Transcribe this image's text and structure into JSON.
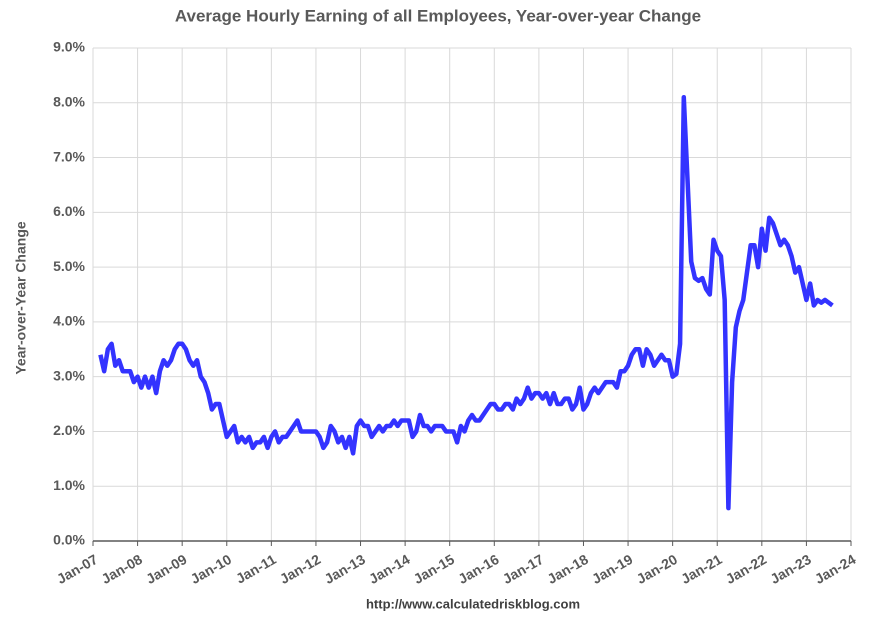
{
  "chart_data": {
    "type": "line",
    "title": "Average Hourly Earning of all Employees, Year-over-year Change",
    "ylabel": "Year-over-Year Change",
    "source": "http://www.calculatedriskblog.com",
    "grid": true,
    "xlim": [
      "2007-01",
      "2024-01"
    ],
    "xticks": [
      {
        "value": "2007-01",
        "label": "Jan-07"
      },
      {
        "value": "2008-01",
        "label": "Jan-08"
      },
      {
        "value": "2009-01",
        "label": "Jan-09"
      },
      {
        "value": "2010-01",
        "label": "Jan-10"
      },
      {
        "value": "2011-01",
        "label": "Jan-11"
      },
      {
        "value": "2012-01",
        "label": "Jan-12"
      },
      {
        "value": "2013-01",
        "label": "Jan-13"
      },
      {
        "value": "2014-01",
        "label": "Jan-14"
      },
      {
        "value": "2015-01",
        "label": "Jan-15"
      },
      {
        "value": "2016-01",
        "label": "Jan-16"
      },
      {
        "value": "2017-01",
        "label": "Jan-17"
      },
      {
        "value": "2018-01",
        "label": "Jan-18"
      },
      {
        "value": "2019-01",
        "label": "Jan-19"
      },
      {
        "value": "2020-01",
        "label": "Jan-20"
      },
      {
        "value": "2021-01",
        "label": "Jan-21"
      },
      {
        "value": "2022-01",
        "label": "Jan-22"
      },
      {
        "value": "2023-01",
        "label": "Jan-23"
      },
      {
        "value": "2024-01",
        "label": "Jan-24"
      }
    ],
    "ylim": [
      0,
      9
    ],
    "yticks": [
      {
        "value": 0,
        "label": "0.0%"
      },
      {
        "value": 1,
        "label": "1.0%"
      },
      {
        "value": 2,
        "label": "2.0%"
      },
      {
        "value": 3,
        "label": "3.0%"
      },
      {
        "value": 4,
        "label": "4.0%"
      },
      {
        "value": 5,
        "label": "5.0%"
      },
      {
        "value": 6,
        "label": "6.0%"
      },
      {
        "value": 7,
        "label": "7.0%"
      },
      {
        "value": 8,
        "label": "8.0%"
      },
      {
        "value": 9,
        "label": "9.0%"
      }
    ],
    "x": [
      "2007-03",
      "2007-04",
      "2007-05",
      "2007-06",
      "2007-07",
      "2007-08",
      "2007-09",
      "2007-10",
      "2007-11",
      "2007-12",
      "2008-01",
      "2008-02",
      "2008-03",
      "2008-04",
      "2008-05",
      "2008-06",
      "2008-07",
      "2008-08",
      "2008-09",
      "2008-10",
      "2008-11",
      "2008-12",
      "2009-01",
      "2009-02",
      "2009-03",
      "2009-04",
      "2009-05",
      "2009-06",
      "2009-07",
      "2009-08",
      "2009-09",
      "2009-10",
      "2009-11",
      "2009-12",
      "2010-01",
      "2010-02",
      "2010-03",
      "2010-04",
      "2010-05",
      "2010-06",
      "2010-07",
      "2010-08",
      "2010-09",
      "2010-10",
      "2010-11",
      "2010-12",
      "2011-01",
      "2011-02",
      "2011-03",
      "2011-04",
      "2011-05",
      "2011-06",
      "2011-07",
      "2011-08",
      "2011-09",
      "2011-10",
      "2011-11",
      "2011-12",
      "2012-01",
      "2012-02",
      "2012-03",
      "2012-04",
      "2012-05",
      "2012-06",
      "2012-07",
      "2012-08",
      "2012-09",
      "2012-10",
      "2012-11",
      "2012-12",
      "2013-01",
      "2013-02",
      "2013-03",
      "2013-04",
      "2013-05",
      "2013-06",
      "2013-07",
      "2013-08",
      "2013-09",
      "2013-10",
      "2013-11",
      "2013-12",
      "2014-01",
      "2014-02",
      "2014-03",
      "2014-04",
      "2014-05",
      "2014-06",
      "2014-07",
      "2014-08",
      "2014-09",
      "2014-10",
      "2014-11",
      "2014-12",
      "2015-01",
      "2015-02",
      "2015-03",
      "2015-04",
      "2015-05",
      "2015-06",
      "2015-07",
      "2015-08",
      "2015-09",
      "2015-10",
      "2015-11",
      "2015-12",
      "2016-01",
      "2016-02",
      "2016-03",
      "2016-04",
      "2016-05",
      "2016-06",
      "2016-07",
      "2016-08",
      "2016-09",
      "2016-10",
      "2016-11",
      "2016-12",
      "2017-01",
      "2017-02",
      "2017-03",
      "2017-04",
      "2017-05",
      "2017-06",
      "2017-07",
      "2017-08",
      "2017-09",
      "2017-10",
      "2017-11",
      "2017-12",
      "2018-01",
      "2018-02",
      "2018-03",
      "2018-04",
      "2018-05",
      "2018-06",
      "2018-07",
      "2018-08",
      "2018-09",
      "2018-10",
      "2018-11",
      "2018-12",
      "2019-01",
      "2019-02",
      "2019-03",
      "2019-04",
      "2019-05",
      "2019-06",
      "2019-07",
      "2019-08",
      "2019-09",
      "2019-10",
      "2019-11",
      "2019-12",
      "2020-01",
      "2020-02",
      "2020-03",
      "2020-04",
      "2020-05",
      "2020-06",
      "2020-07",
      "2020-08",
      "2020-09",
      "2020-10",
      "2020-11",
      "2020-12",
      "2021-01",
      "2021-02",
      "2021-03",
      "2021-04",
      "2021-05",
      "2021-06",
      "2021-07",
      "2021-08",
      "2021-09",
      "2021-10",
      "2021-11",
      "2021-12",
      "2022-01",
      "2022-02",
      "2022-03",
      "2022-04",
      "2022-05",
      "2022-06",
      "2022-07",
      "2022-08",
      "2022-09",
      "2022-10",
      "2022-11",
      "2022-12",
      "2023-01",
      "2023-02",
      "2023-03",
      "2023-04",
      "2023-05",
      "2023-06",
      "2023-07",
      "2023-08"
    ],
    "series": [
      {
        "color": "#3333ff",
        "values": [
          3.4,
          3.1,
          3.5,
          3.6,
          3.2,
          3.3,
          3.1,
          3.1,
          3.1,
          2.9,
          3.0,
          2.8,
          3.0,
          2.8,
          3.0,
          2.7,
          3.1,
          3.3,
          3.2,
          3.3,
          3.5,
          3.6,
          3.6,
          3.5,
          3.3,
          3.2,
          3.3,
          3.0,
          2.9,
          2.7,
          2.4,
          2.5,
          2.5,
          2.2,
          1.9,
          2.0,
          2.1,
          1.8,
          1.9,
          1.8,
          1.9,
          1.7,
          1.8,
          1.8,
          1.9,
          1.7,
          1.9,
          2.0,
          1.8,
          1.9,
          1.9,
          2.0,
          2.1,
          2.2,
          2.0,
          2.0,
          2.0,
          2.0,
          2.0,
          1.9,
          1.7,
          1.8,
          2.1,
          2.0,
          1.8,
          1.9,
          1.7,
          1.9,
          1.6,
          2.1,
          2.2,
          2.1,
          2.1,
          1.9,
          2.0,
          2.1,
          2.0,
          2.1,
          2.1,
          2.2,
          2.1,
          2.2,
          2.2,
          2.2,
          1.9,
          2.0,
          2.3,
          2.1,
          2.1,
          2.0,
          2.1,
          2.1,
          2.1,
          2.0,
          2.0,
          2.0,
          1.8,
          2.1,
          2.0,
          2.2,
          2.3,
          2.2,
          2.2,
          2.3,
          2.4,
          2.5,
          2.5,
          2.4,
          2.4,
          2.5,
          2.5,
          2.4,
          2.6,
          2.5,
          2.6,
          2.8,
          2.6,
          2.7,
          2.7,
          2.6,
          2.7,
          2.5,
          2.7,
          2.5,
          2.5,
          2.6,
          2.6,
          2.4,
          2.5,
          2.8,
          2.4,
          2.5,
          2.7,
          2.8,
          2.7,
          2.8,
          2.9,
          2.9,
          2.9,
          2.8,
          3.1,
          3.1,
          3.2,
          3.4,
          3.5,
          3.5,
          3.2,
          3.5,
          3.4,
          3.2,
          3.3,
          3.4,
          3.3,
          3.3,
          3.0,
          3.05,
          3.6,
          8.1,
          6.6,
          5.1,
          4.8,
          4.75,
          4.8,
          4.6,
          4.5,
          5.5,
          5.3,
          5.2,
          4.4,
          0.6,
          2.9,
          3.9,
          4.2,
          4.4,
          4.9,
          5.4,
          5.4,
          5.0,
          5.7,
          5.3,
          5.9,
          5.8,
          5.6,
          5.4,
          5.5,
          5.4,
          5.2,
          4.9,
          5.0,
          4.7,
          4.4,
          4.7,
          4.3,
          4.4,
          4.35,
          4.4,
          4.35,
          4.3
        ]
      }
    ]
  }
}
